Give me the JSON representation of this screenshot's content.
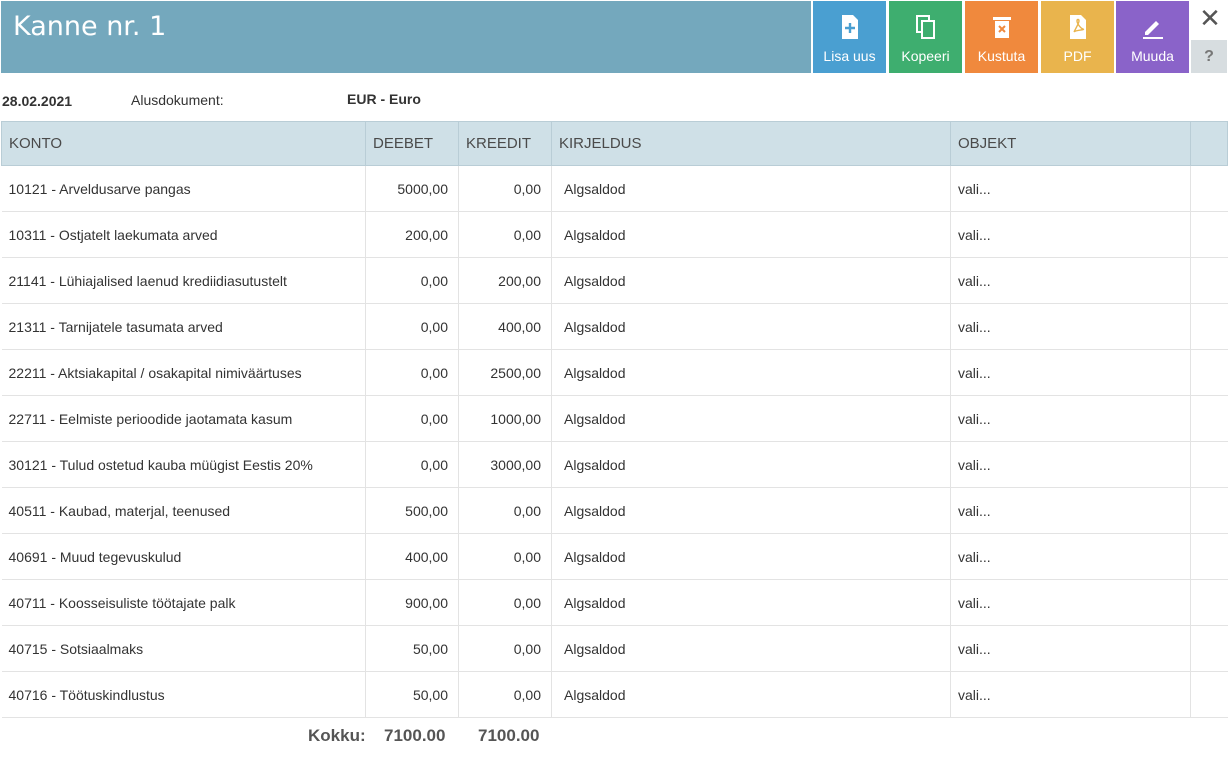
{
  "title": "Kanne nr. 1",
  "toolbar": {
    "lisa_uus": "Lisa uus",
    "kopeeri": "Kopeeri",
    "kustuta": "Kustuta",
    "pdf": "PDF",
    "muuda": "Muuda",
    "close_glyph": "✕",
    "help_glyph": "?"
  },
  "meta": {
    "date": "28.02.2021",
    "alusdokument_label": "Alusdokument:",
    "currency": "EUR - Euro"
  },
  "columns": [
    "KONTO",
    "DEEBET",
    "KREEDIT",
    "KIRJELDUS",
    "OBJEKT"
  ],
  "rows": [
    {
      "konto": "10121 - Arveldusarve pangas",
      "deebet": "5000,00",
      "kreedit": "0,00",
      "kirjeldus": "Algsaldod",
      "objekt": "vali..."
    },
    {
      "konto": "10311 - Ostjatelt laekumata arved",
      "deebet": "200,00",
      "kreedit": "0,00",
      "kirjeldus": "Algsaldod",
      "objekt": "vali..."
    },
    {
      "konto": "21141 - Lühiajalised laenud krediidiasutustelt",
      "deebet": "0,00",
      "kreedit": "200,00",
      "kirjeldus": "Algsaldod",
      "objekt": "vali..."
    },
    {
      "konto": "21311 - Tarnijatele tasumata arved",
      "deebet": "0,00",
      "kreedit": "400,00",
      "kirjeldus": "Algsaldod",
      "objekt": "vali..."
    },
    {
      "konto": "22211 - Aktsiakapital / osakapital nimiväärtuses",
      "deebet": "0,00",
      "kreedit": "2500,00",
      "kirjeldus": "Algsaldod",
      "objekt": "vali..."
    },
    {
      "konto": "22711 - Eelmiste perioodide jaotamata kasum",
      "deebet": "0,00",
      "kreedit": "1000,00",
      "kirjeldus": "Algsaldod",
      "objekt": "vali..."
    },
    {
      "konto": "30121 - Tulud ostetud kauba müügist Eestis 20%",
      "deebet": "0,00",
      "kreedit": "3000,00",
      "kirjeldus": "Algsaldod",
      "objekt": "vali..."
    },
    {
      "konto": "40511 - Kaubad, materjal, teenused",
      "deebet": "500,00",
      "kreedit": "0,00",
      "kirjeldus": "Algsaldod",
      "objekt": "vali..."
    },
    {
      "konto": "40691 - Muud tegevuskulud",
      "deebet": "400,00",
      "kreedit": "0,00",
      "kirjeldus": "Algsaldod",
      "objekt": "vali..."
    },
    {
      "konto": "40711 - Koosseisuliste töötajate palk",
      "deebet": "900,00",
      "kreedit": "0,00",
      "kirjeldus": "Algsaldod",
      "objekt": "vali..."
    },
    {
      "konto": "40715 - Sotsiaalmaks",
      "deebet": "50,00",
      "kreedit": "0,00",
      "kirjeldus": "Algsaldod",
      "objekt": "vali..."
    },
    {
      "konto": "40716 - Töötuskindlustus",
      "deebet": "50,00",
      "kreedit": "0,00",
      "kirjeldus": "Algsaldod",
      "objekt": "vali..."
    }
  ],
  "totals": {
    "label": "Kokku:",
    "deebet": "7100.00",
    "kreedit": "7100.00"
  }
}
